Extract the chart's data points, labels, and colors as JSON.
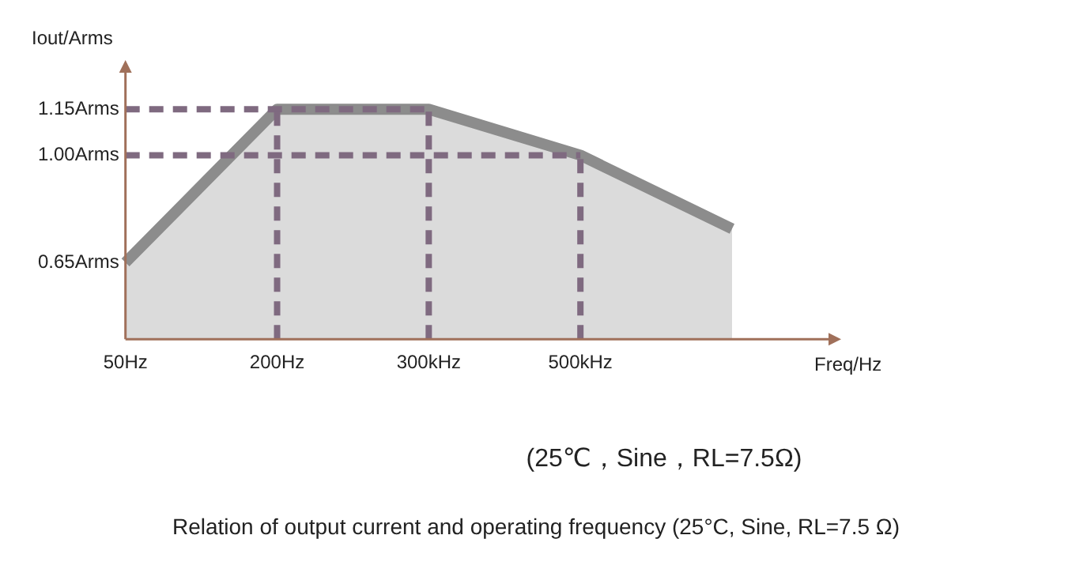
{
  "chart_data": {
    "type": "area",
    "ylabel": "Iout/Arms",
    "xlabel": "Freq/Hz",
    "categories": [
      "50Hz",
      "200Hz",
      "300kHz",
      "500kHz",
      null
    ],
    "series": [
      {
        "color": "#8c8c8c",
        "values": [
          0.65,
          1.15,
          1.15,
          1.0,
          0.76
        ]
      }
    ],
    "ylim": [
      0.4,
      1.3
    ],
    "yticks": [
      {
        "value": 0.65,
        "label": "0.65Arms"
      },
      {
        "value": 1.0,
        "label": "1.00Arms"
      },
      {
        "value": 1.15,
        "label": "1.15Arms"
      }
    ],
    "ref_lines": [
      {
        "axis": "y",
        "value": 1.15,
        "color": "#7f6a80",
        "line_style": "dashed"
      },
      {
        "axis": "y",
        "value": 1.0,
        "color": "#7f6a80",
        "line_style": "dashed"
      },
      {
        "axis": "x",
        "value": "200Hz",
        "color": "#7f6a80",
        "line_style": "dashed"
      },
      {
        "axis": "x",
        "value": "300kHz",
        "color": "#7f6a80",
        "line_style": "dashed"
      },
      {
        "axis": "x",
        "value": "500kHz",
        "color": "#7f6a80",
        "line_style": "dashed"
      }
    ],
    "annotations": [
      "(25℃，Sine，RL=7.5Ω)",
      "Relation of output current and operating frequency (25°C, Sine, RL=7.5 Ω)"
    ],
    "grid": false,
    "legend": false,
    "marker": "none"
  }
}
